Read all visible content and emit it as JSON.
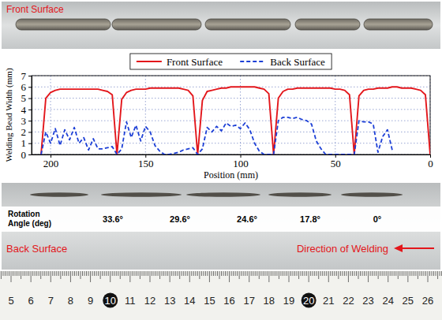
{
  "chart_data": {
    "type": "line",
    "xlabel": "Position (mm)",
    "ylabel": "Welding Bead Width (mm)",
    "x": [
      0,
      2.5,
      5,
      7.5,
      10,
      12.5,
      15,
      17.5,
      20,
      22.5,
      25,
      27.5,
      30,
      32.5,
      35,
      37.5,
      40,
      42.5,
      45,
      47.5,
      50,
      52.5,
      55,
      57.5,
      60,
      62.5,
      65,
      67.5,
      70,
      72.5,
      75,
      77.5,
      80,
      82.5,
      85,
      87.5,
      90,
      92.5,
      95,
      97.5,
      100,
      102.5,
      105,
      107.5,
      110,
      112.5,
      115,
      117.5,
      120,
      122.5,
      125,
      127.5,
      130,
      132.5,
      135,
      137.5,
      140,
      142.5,
      145,
      147.5,
      150,
      152.5,
      155,
      157.5,
      160,
      162.5,
      165,
      167.5,
      170,
      172.5,
      175,
      177.5,
      180,
      182.5,
      185,
      187.5,
      190,
      192.5,
      195,
      197.5,
      200,
      202.5,
      205
    ],
    "series": [
      {
        "name": "Front Surface",
        "color": "#e3161b",
        "line_style": "solid",
        "values": [
          0,
          5.3,
          5.7,
          5.8,
          5.9,
          5.9,
          5.9,
          6.0,
          6.0,
          5.9,
          5.9,
          5.9,
          5.8,
          5.8,
          5.7,
          5.2,
          0,
          5.3,
          5.7,
          5.8,
          5.8,
          5.9,
          5.9,
          5.9,
          5.9,
          5.9,
          5.9,
          5.9,
          5.9,
          5.8,
          5.8,
          5.6,
          5.0,
          0,
          5.4,
          5.8,
          5.9,
          6.0,
          6.0,
          6.0,
          6.0,
          6.0,
          6.0,
          5.9,
          5.9,
          5.8,
          5.7,
          5.6,
          4.8,
          0,
          5.2,
          5.7,
          5.8,
          5.9,
          5.9,
          5.9,
          5.9,
          5.9,
          5.9,
          5.9,
          5.8,
          5.8,
          5.8,
          5.7,
          5.5,
          4.9,
          0,
          5.3,
          5.6,
          5.7,
          5.8,
          5.8,
          5.8,
          5.8,
          5.8,
          5.8,
          5.8,
          5.8,
          5.8,
          5.7,
          5.5,
          5.0,
          0
        ]
      },
      {
        "name": "Back Surface",
        "color": "#1c3fd6",
        "line_style": "dashed",
        "values": [
          null,
          null,
          null,
          null,
          null,
          null,
          null,
          null,
          0.4,
          2.2,
          1.6,
          0.2,
          2.7,
          2.9,
          2.9,
          3.0,
          0,
          0,
          0,
          0,
          0,
          0,
          0,
          0.5,
          1.2,
          2.7,
          3.0,
          3.1,
          3.3,
          3.2,
          3.3,
          3.3,
          3.0,
          0,
          0,
          0,
          0.3,
          1.0,
          2.2,
          2.8,
          2.3,
          2.6,
          2.5,
          2.8,
          2.1,
          2.5,
          2.0,
          2.4,
          0.5,
          0,
          0.6,
          0.5,
          0.4,
          0.2,
          0.1,
          0,
          0,
          0.3,
          0.8,
          2.0,
          2.5,
          1.2,
          2.6,
          1.5,
          2.9,
          0.5,
          0,
          0.7,
          0.6,
          0.5,
          0.5,
          1.4,
          0.4,
          1.5,
          1.0,
          2.4,
          1.3,
          2.2,
          0.8,
          2.3,
          1.0,
          2.0,
          0
        ]
      }
    ],
    "xlim": [
      210,
      0
    ],
    "xticks": [
      200,
      150,
      100,
      50,
      0
    ],
    "ylim": [
      0,
      7
    ],
    "yticks": [
      0,
      1,
      2,
      3,
      4,
      5,
      6,
      7
    ],
    "grid": true,
    "legend": "top"
  },
  "photos": {
    "front_label": "Front Surface",
    "back_label": "Back Surface",
    "direction_label": "Direction of Welding",
    "rotation_header": "Rotation Angle (deg)",
    "rotation_angles": [
      "33.6°",
      "29.6°",
      "24.6°",
      "17.8°",
      "0°"
    ],
    "ruler_ticks": [
      5,
      6,
      7,
      8,
      9,
      10,
      11,
      12,
      13,
      14,
      15,
      16,
      17,
      18,
      19,
      20,
      21,
      22,
      23,
      24,
      25,
      26
    ]
  }
}
